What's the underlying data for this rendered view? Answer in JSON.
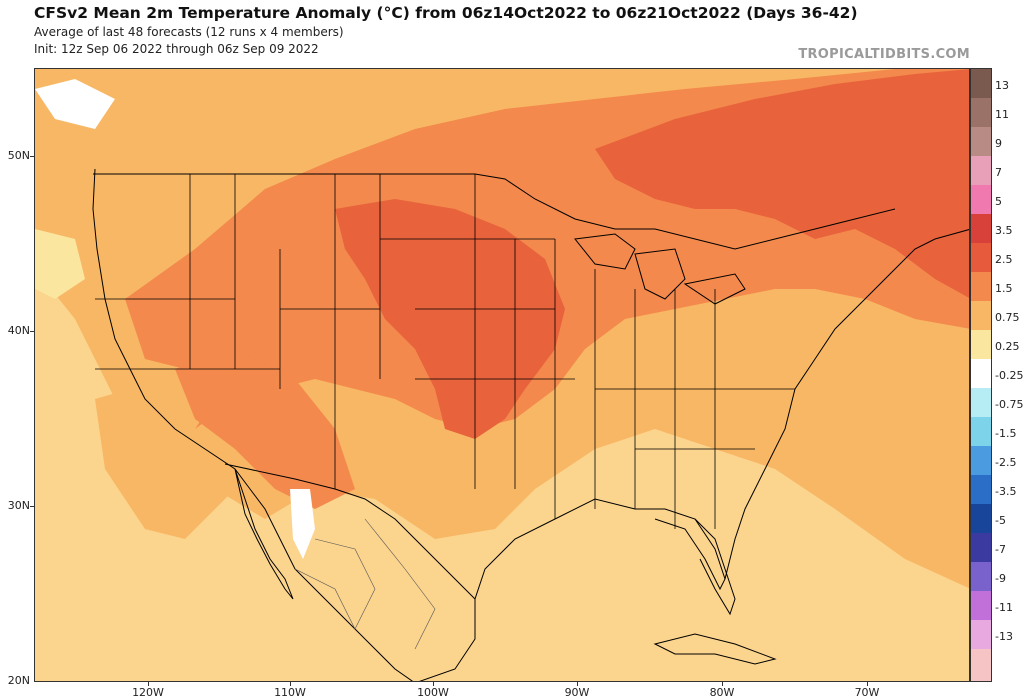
{
  "header": {
    "title": "CFSv2 Mean 2m Temperature Anomaly (°C) from 06z14Oct2022 to 06z21Oct2022 (Days 36-42)",
    "subtitle1": "Average of last 48 forecasts (12 runs x 4 members)",
    "subtitle2": "Init: 12z Sep 06 2022 through 06z Sep 09 2022"
  },
  "brand": "TROPICALTIDBITS.COM",
  "axes": {
    "lat_labels": [
      "50N",
      "40N",
      "30N",
      "20N"
    ],
    "lon_labels": [
      "120W",
      "110W",
      "100W",
      "90W",
      "80W",
      "70W"
    ]
  },
  "colorbar": {
    "labels": [
      "13",
      "11",
      "9",
      "7",
      "5",
      "3.5",
      "2.5",
      "1.5",
      "0.75",
      "0.25",
      "-0.25",
      "-0.75",
      "-1.5",
      "-2.5",
      "-3.5",
      "-5",
      "-7",
      "-9",
      "-11",
      "-13"
    ],
    "colors": [
      "#7a5a4e",
      "#9a7268",
      "#b88c84",
      "#e8a0b8",
      "#f07ab0",
      "#d8403a",
      "#e85a3c",
      "#f3894c",
      "#f8b764",
      "#fbe6a0",
      "#ffffff",
      "#b6ecf4",
      "#7dd3ea",
      "#4a9be0",
      "#2a6ec8",
      "#18449a",
      "#3a3aa0",
      "#7a62cc",
      "#c070d8",
      "#e8a8e0",
      "#f6c4c4"
    ]
  },
  "colors": {
    "light_anomaly": "#fbd48e",
    "moderate_anomaly": "#f8b764",
    "strong_anomaly": "#f3894c",
    "very_strong_anomaly": "#e8623c"
  }
}
